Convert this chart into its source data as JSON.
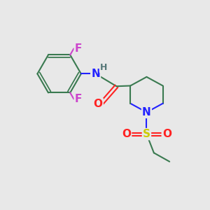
{
  "background_color": "#e8e8e8",
  "bond_color": "#3a7a50",
  "bond_width": 1.5,
  "atom_colors": {
    "F": "#cc44cc",
    "N": "#2222ff",
    "O": "#ff2222",
    "S": "#cccc00",
    "H": "#557777",
    "C": "#3a7a50"
  },
  "font_size_atoms": 11,
  "font_size_H": 9
}
